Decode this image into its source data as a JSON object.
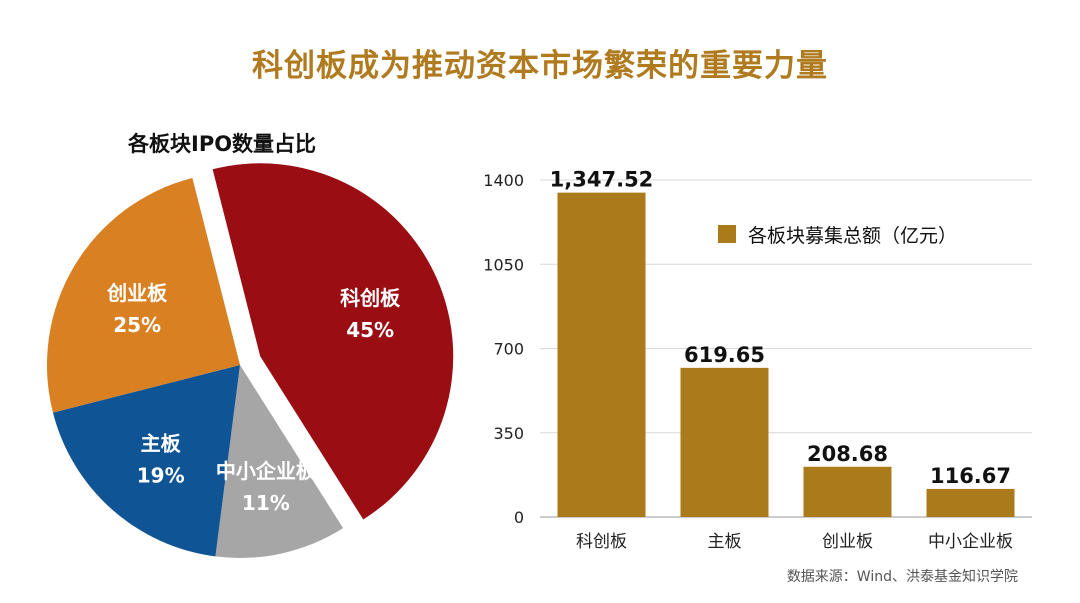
{
  "title": "科创板成为推动资本市场繁荣的重要力量",
  "source": "数据来源：Wind、洪泰基金知识学院",
  "chart_data": [
    {
      "type": "pie",
      "title": "各板块IPO数量占比",
      "slices": [
        {
          "label": "科创板",
          "percent_label": "45%",
          "value": 45,
          "color": "#9a0d12",
          "exploded": true
        },
        {
          "label": "中小企业板",
          "percent_label": "11%",
          "value": 11,
          "color": "#a6a6a6",
          "exploded": false
        },
        {
          "label": "主板",
          "percent_label": "19%",
          "value": 19,
          "color": "#0f5494",
          "exploded": false
        },
        {
          "label": "创业板",
          "percent_label": "25%",
          "value": 25,
          "color": "#d98023",
          "exploded": false
        }
      ]
    },
    {
      "type": "bar",
      "categories": [
        "科创板",
        "主板",
        "创业板",
        "中小企业板"
      ],
      "series": [
        {
          "name": "各板块募集总额（亿元）",
          "values": [
            1347.52,
            619.65,
            208.68,
            116.67
          ],
          "labels": [
            "1,347.52",
            "619.65",
            "208.68",
            "116.67"
          ],
          "color": "#ab7a1a"
        }
      ],
      "yticks": [
        0,
        350,
        700,
        1050,
        1400
      ],
      "ylim": [
        0,
        1400
      ],
      "grid": true,
      "legend": "upper-right"
    }
  ]
}
